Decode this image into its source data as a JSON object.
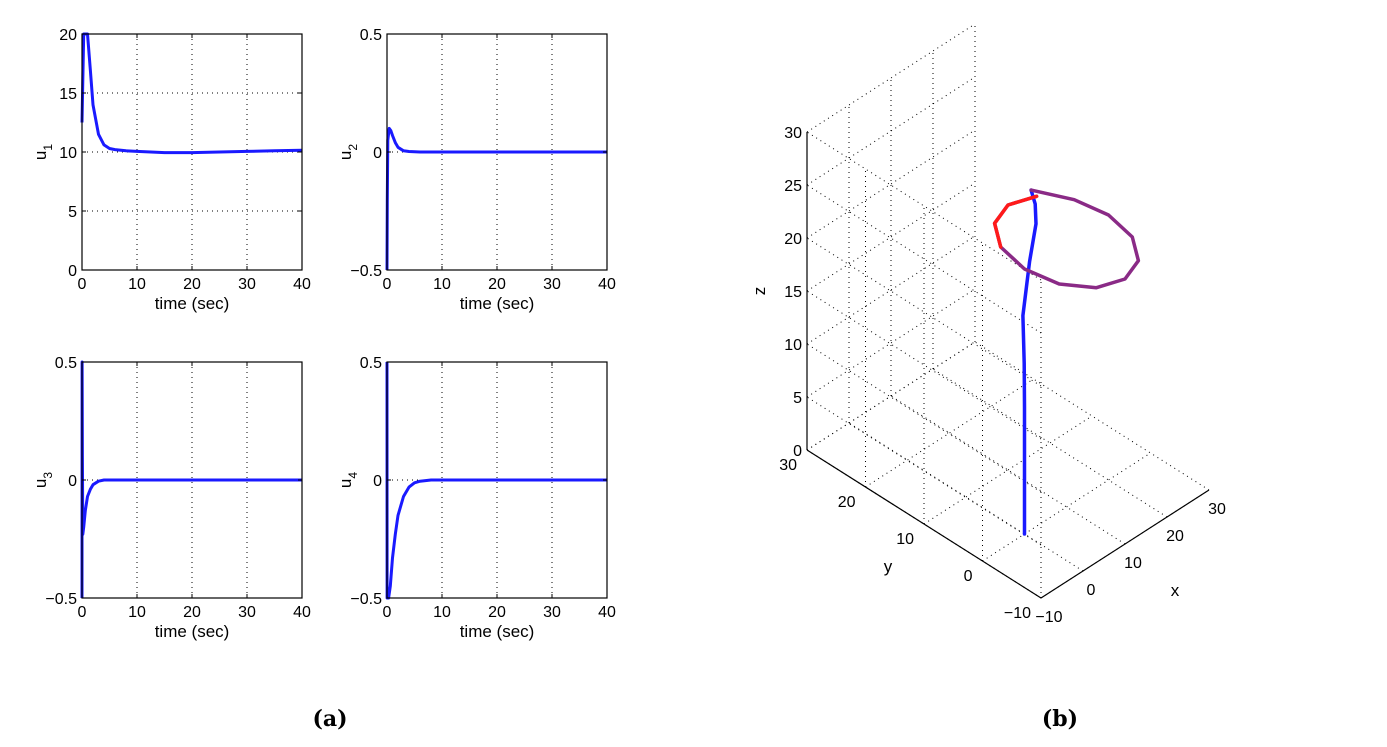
{
  "chart_data": [
    {
      "type": "line",
      "xlabel": "time (sec)",
      "ylabel": "u",
      "ylabel_sub": "1",
      "xlim": [
        0,
        40
      ],
      "ylim": [
        0,
        20
      ],
      "xticks": [
        0,
        10,
        20,
        30,
        40
      ],
      "yticks": [
        0,
        5,
        10,
        15,
        20
      ],
      "grid": true,
      "series": [
        {
          "color": "#1a1aff",
          "x": [
            0,
            0.3,
            0.6,
            1,
            1.5,
            2,
            3,
            4,
            5,
            6,
            8,
            10,
            15,
            20,
            25,
            30,
            35,
            40
          ],
          "y": [
            12.5,
            20,
            20,
            20,
            17,
            14,
            11.5,
            10.6,
            10.3,
            10.2,
            10.1,
            10.05,
            9.95,
            9.95,
            10.0,
            10.05,
            10.1,
            10.15
          ]
        }
      ]
    },
    {
      "type": "line",
      "xlabel": "time (sec)",
      "ylabel": "u",
      "ylabel_sub": "2",
      "xlim": [
        0,
        40
      ],
      "ylim": [
        -0.5,
        0.5
      ],
      "xticks": [
        0,
        10,
        20,
        30,
        40
      ],
      "yticks": [
        -0.5,
        0,
        0.5
      ],
      "grid": true,
      "series": [
        {
          "color": "#1a1aff",
          "x": [
            0,
            0.05,
            0.15,
            0.4,
            0.7,
            1,
            1.5,
            2,
            3,
            4,
            6,
            10,
            20,
            30,
            40
          ],
          "y": [
            -0.5,
            -0.2,
            0.05,
            0.1,
            0.09,
            0.07,
            0.04,
            0.02,
            0.005,
            0.002,
            0,
            0,
            0,
            0,
            0
          ]
        }
      ]
    },
    {
      "type": "line",
      "xlabel": "time (sec)",
      "ylabel": "u",
      "ylabel_sub": "3",
      "xlim": [
        0,
        40
      ],
      "ylim": [
        -0.5,
        0.5
      ],
      "xticks": [
        0,
        10,
        20,
        30,
        40
      ],
      "yticks": [
        -0.5,
        0,
        0.5
      ],
      "grid": true,
      "series": [
        {
          "color": "#1a1aff",
          "x": [
            0,
            0.02,
            0.08,
            0.15,
            0.3,
            0.6,
            1,
            1.5,
            2,
            3,
            4,
            6,
            10,
            20,
            30,
            40
          ],
          "y": [
            -0.5,
            0.5,
            0.1,
            -0.23,
            -0.2,
            -0.13,
            -0.07,
            -0.04,
            -0.02,
            -0.005,
            0,
            0,
            0,
            0,
            0,
            0
          ]
        }
      ]
    },
    {
      "type": "line",
      "xlabel": "time (sec)",
      "ylabel": "u",
      "ylabel_sub": "4",
      "xlim": [
        0,
        40
      ],
      "ylim": [
        -0.5,
        0.5
      ],
      "xticks": [
        0,
        10,
        20,
        30,
        40
      ],
      "yticks": [
        -0.5,
        0,
        0.5
      ],
      "grid": true,
      "series": [
        {
          "color": "#1a1aff",
          "x": [
            0,
            0.02,
            0.1,
            0.3,
            0.6,
            1,
            1.5,
            2,
            3,
            4,
            5,
            6,
            8,
            10,
            20,
            30,
            40
          ],
          "y": [
            0.5,
            -0.5,
            -0.5,
            -0.5,
            -0.45,
            -0.33,
            -0.23,
            -0.15,
            -0.07,
            -0.03,
            -0.012,
            -0.005,
            0,
            0,
            0,
            0,
            0
          ]
        }
      ]
    },
    {
      "type": "line3d",
      "xlabel": "x",
      "ylabel": "y",
      "zlabel": "z",
      "xlim": [
        -10,
        30
      ],
      "ylim": [
        -10,
        30
      ],
      "zlim": [
        0,
        30
      ],
      "xticks": [
        -10,
        0,
        10,
        20,
        30
      ],
      "yticks": [
        -10,
        0,
        10,
        20,
        30
      ],
      "zticks": [
        0,
        5,
        10,
        15,
        20,
        25,
        30
      ],
      "grid": true,
      "series": [
        {
          "name": "",
          "color": "#1a1aff",
          "x": [
            0,
            0,
            0,
            0,
            0.2,
            1,
            4,
            9,
            13,
            15.5
          ],
          "y": [
            0,
            0,
            0,
            0,
            0.2,
            1,
            2,
            4.5,
            7.5,
            10
          ],
          "z": [
            0,
            4,
            8,
            12,
            16,
            20,
            24,
            25.4,
            25.2,
            25
          ]
        },
        {
          "name": "",
          "color": "#8a2a86",
          "x": [
            15.5,
            18.8,
            20,
            18.7,
            15,
            10,
            5,
            1.3,
            0,
            1.3,
            5,
            10,
            15
          ],
          "y": [
            10,
            5,
            0,
            -5,
            -8.7,
            -10,
            -8.7,
            -5,
            0,
            5,
            8.7,
            10,
            8.7
          ],
          "z": [
            25,
            25,
            25,
            25,
            25,
            25,
            25,
            25,
            25,
            25,
            25,
            25,
            25
          ]
        },
        {
          "name": "",
          "color": "#ff1a1a",
          "x": [
            1.3,
            5,
            10,
            15
          ],
          "y": [
            5,
            8.7,
            10,
            8.7
          ],
          "z": [
            25,
            25,
            25,
            25
          ]
        }
      ]
    }
  ],
  "panel_labels": {
    "a": "(a)",
    "b": "(b)"
  }
}
